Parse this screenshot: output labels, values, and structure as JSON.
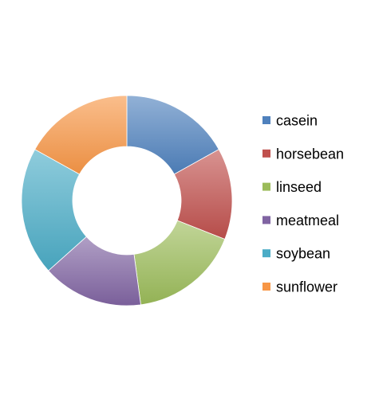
{
  "chart_data": {
    "type": "pie",
    "donut": true,
    "categories": [
      "casein",
      "horsebean",
      "linseed",
      "meatmeal",
      "soybean",
      "sunflower"
    ],
    "values": [
      12,
      10,
      12,
      11,
      14,
      12
    ],
    "colors": [
      "#4f81bd",
      "#c0504d",
      "#9bbb59",
      "#8064a2",
      "#4bacc6",
      "#f79646"
    ],
    "title": "",
    "legend": {
      "position": "right",
      "entries": [
        "casein",
        "horsebean",
        "linseed",
        "meatmeal",
        "soybean",
        "sunflower"
      ]
    },
    "start_angle_deg": 0,
    "direction": "clockwise"
  }
}
